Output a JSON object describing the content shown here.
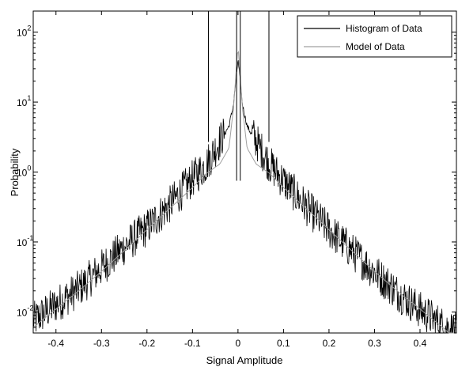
{
  "chart_data": {
    "type": "line",
    "title": "",
    "xlabel": "Signal Amplitude",
    "ylabel": "Probability",
    "xlim": [
      -0.45,
      0.48
    ],
    "ylim": [
      0.005,
      200
    ],
    "yscale": "log",
    "grid": false,
    "legend_position": "top-right",
    "x_ticks": [
      -0.4,
      -0.3,
      -0.2,
      -0.1,
      0,
      0.1,
      0.2,
      0.3,
      0.4
    ],
    "x_tick_labels": [
      "-0.4",
      "-0.3",
      "-0.2",
      "-0.1",
      "0",
      "0.1",
      "0.2",
      "0.3",
      "0.4"
    ],
    "y_ticks": [
      0.01,
      0.1,
      1,
      10,
      100
    ],
    "y_tick_labels": [
      {
        "base": "10",
        "exp": "-2"
      },
      {
        "base": "10",
        "exp": "-1"
      },
      {
        "base": "10",
        "exp": "0"
      },
      {
        "base": "10",
        "exp": "1"
      },
      {
        "base": "10",
        "exp": "2"
      }
    ],
    "series": [
      {
        "name": "Histogram of Data",
        "color": "#000000",
        "style": "noisy-histogram",
        "x": [
          -0.45,
          -0.4,
          -0.35,
          -0.3,
          -0.25,
          -0.2,
          -0.15,
          -0.1,
          -0.07,
          -0.04,
          -0.02,
          -0.01,
          0,
          0.01,
          0.02,
          0.04,
          0.07,
          0.1,
          0.15,
          0.2,
          0.25,
          0.3,
          0.35,
          0.4,
          0.45,
          0.48
        ],
        "y": [
          0.007,
          0.012,
          0.02,
          0.04,
          0.08,
          0.15,
          0.32,
          0.75,
          1.2,
          2.6,
          4.5,
          9,
          40,
          9,
          4.5,
          2.6,
          1.2,
          0.7,
          0.3,
          0.14,
          0.07,
          0.035,
          0.018,
          0.01,
          0.006,
          0.005
        ]
      },
      {
        "name": "Model of Data",
        "color": "#a0a0a0",
        "style": "smooth",
        "x": [
          -0.45,
          -0.4,
          -0.35,
          -0.3,
          -0.25,
          -0.2,
          -0.15,
          -0.1,
          -0.07,
          -0.04,
          -0.02,
          -0.01,
          0,
          0.01,
          0.02,
          0.04,
          0.07,
          0.1,
          0.15,
          0.2,
          0.25,
          0.3,
          0.35,
          0.4,
          0.45,
          0.48
        ],
        "y": [
          0.006,
          0.011,
          0.02,
          0.038,
          0.075,
          0.15,
          0.3,
          0.6,
          0.95,
          1.3,
          2.2,
          8,
          65,
          8,
          2.2,
          1.3,
          0.95,
          0.6,
          0.3,
          0.15,
          0.075,
          0.038,
          0.02,
          0.011,
          0.006,
          0.004
        ]
      }
    ],
    "threshold_lines": [
      -0.065,
      -0.003,
      0.005,
      0.068
    ]
  }
}
